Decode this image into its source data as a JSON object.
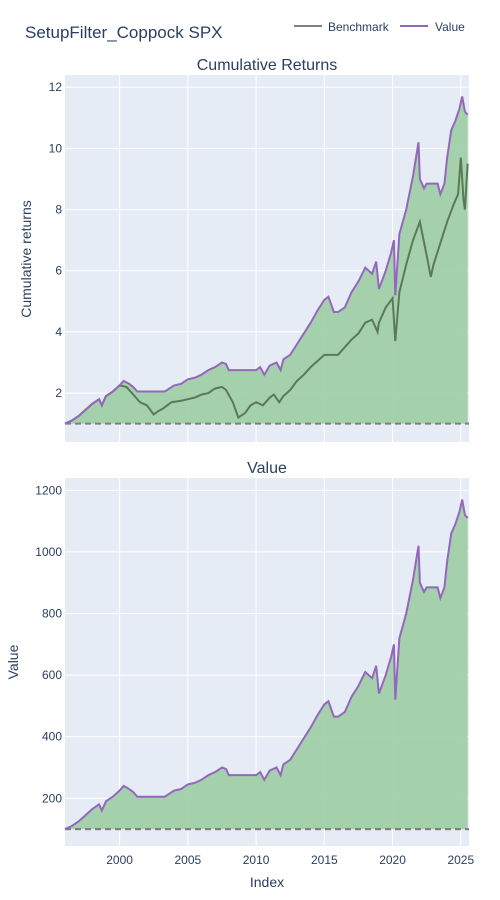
{
  "title": "SetupFilter_Coppock SPX",
  "legend": {
    "items": [
      {
        "name": "Benchmark",
        "color": "#7f7f7f"
      },
      {
        "name": "Value",
        "color": "#9467bd"
      }
    ]
  },
  "colors": {
    "plot_bg": "#e5ecf6",
    "grid": "#ffffff",
    "fill": "#a0d0a8",
    "value": "#9467bd",
    "benchmark": "#5a7a55",
    "baseline": "#7f7f7f",
    "text": "#2a3f5f"
  },
  "chart_data": [
    {
      "type": "line",
      "title": "Cumulative Returns",
      "xlabel": "",
      "ylabel": "Cumulative returns",
      "xlim": [
        1996.0,
        2025.6
      ],
      "ylim": [
        0.4,
        12.4
      ],
      "yticks": [
        2,
        4,
        6,
        8,
        10,
        12
      ],
      "xticks": [
        2000,
        2005,
        2010,
        2015,
        2020,
        2025
      ],
      "xtick_labels_shown": false,
      "baseline": 1,
      "series": [
        {
          "name": "Value",
          "x": [
            1996.0,
            1996.5,
            1997.0,
            1997.5,
            1998.0,
            1998.5,
            1998.7,
            1999.0,
            1999.5,
            2000.0,
            2000.3,
            2000.7,
            2001.0,
            2001.3,
            2002.0,
            2003.0,
            2003.3,
            2004.0,
            2004.5,
            2005.0,
            2005.5,
            2006.0,
            2006.5,
            2007.0,
            2007.5,
            2007.8,
            2008.0,
            2009.0,
            2009.5,
            2010.0,
            2010.3,
            2010.6,
            2011.0,
            2011.5,
            2011.8,
            2012.0,
            2012.5,
            2013.0,
            2013.5,
            2014.0,
            2014.5,
            2015.0,
            2015.3,
            2015.7,
            2016.0,
            2016.5,
            2017.0,
            2017.5,
            2018.0,
            2018.5,
            2018.8,
            2019.0,
            2019.5,
            2019.9,
            2020.1,
            2020.2,
            2020.5,
            2021.0,
            2021.5,
            2021.9,
            2022.0,
            2022.3,
            2022.5,
            2023.0,
            2023.3,
            2023.5,
            2023.8,
            2024.0,
            2024.3,
            2024.6,
            2024.9,
            2025.1,
            2025.3,
            2025.5
          ],
          "y": [
            1.0,
            1.1,
            1.25,
            1.45,
            1.65,
            1.8,
            1.6,
            1.9,
            2.05,
            2.25,
            2.4,
            2.3,
            2.2,
            2.05,
            2.05,
            2.05,
            2.05,
            2.25,
            2.3,
            2.45,
            2.5,
            2.6,
            2.75,
            2.85,
            3.0,
            2.95,
            2.75,
            2.75,
            2.75,
            2.75,
            2.85,
            2.6,
            2.9,
            3.0,
            2.75,
            3.1,
            3.25,
            3.6,
            3.95,
            4.3,
            4.7,
            5.05,
            5.15,
            4.65,
            4.65,
            4.8,
            5.3,
            5.65,
            6.1,
            5.9,
            6.3,
            5.4,
            6.0,
            6.6,
            7.0,
            5.2,
            7.2,
            8.0,
            9.1,
            10.2,
            9.0,
            8.7,
            8.85,
            8.85,
            8.85,
            8.5,
            8.85,
            9.7,
            10.6,
            10.9,
            11.3,
            11.7,
            11.2,
            11.1
          ]
        },
        {
          "name": "Benchmark",
          "x": [
            1996.0,
            1996.5,
            1997.0,
            1997.5,
            1998.0,
            1998.5,
            1998.7,
            1999.0,
            1999.5,
            2000.0,
            2000.5,
            2001.0,
            2001.5,
            2002.0,
            2002.5,
            2002.8,
            2003.2,
            2003.8,
            2004.5,
            2005.0,
            2005.5,
            2006.0,
            2006.5,
            2007.0,
            2007.5,
            2007.8,
            2008.3,
            2008.7,
            2009.2,
            2009.6,
            2010.0,
            2010.5,
            2011.0,
            2011.3,
            2011.7,
            2012.0,
            2012.5,
            2013.0,
            2013.5,
            2014.0,
            2014.5,
            2015.0,
            2015.5,
            2016.0,
            2016.5,
            2017.0,
            2017.5,
            2018.0,
            2018.5,
            2018.9,
            2019.0,
            2019.5,
            2020.0,
            2020.2,
            2020.5,
            2021.0,
            2021.5,
            2022.0,
            2022.5,
            2022.8,
            2023.0,
            2023.5,
            2024.0,
            2024.5,
            2024.8,
            2025.0,
            2025.2,
            2025.3,
            2025.5
          ],
          "y": [
            1.0,
            1.1,
            1.25,
            1.45,
            1.65,
            1.8,
            1.6,
            1.9,
            2.05,
            2.25,
            2.2,
            1.95,
            1.7,
            1.6,
            1.3,
            1.4,
            1.5,
            1.7,
            1.75,
            1.8,
            1.85,
            1.95,
            2.0,
            2.15,
            2.2,
            2.1,
            1.7,
            1.2,
            1.35,
            1.6,
            1.7,
            1.6,
            1.85,
            1.95,
            1.7,
            1.9,
            2.1,
            2.4,
            2.6,
            2.85,
            3.05,
            3.25,
            3.25,
            3.25,
            3.5,
            3.75,
            3.95,
            4.3,
            4.4,
            4.0,
            4.3,
            4.8,
            5.1,
            3.7,
            5.3,
            6.2,
            7.0,
            7.6,
            6.5,
            5.8,
            6.2,
            6.9,
            7.6,
            8.2,
            8.5,
            9.7,
            8.3,
            8.0,
            9.5
          ]
        }
      ]
    },
    {
      "type": "line",
      "title": "Value",
      "xlabel": "Index",
      "ylabel": "Value",
      "xlim": [
        1996.0,
        2025.6
      ],
      "ylim": [
        45,
        1240
      ],
      "yticks": [
        200,
        400,
        600,
        800,
        1000,
        1200
      ],
      "xticks": [
        2000,
        2005,
        2010,
        2015,
        2020,
        2025
      ],
      "xtick_labels": [
        "2000",
        "2005",
        "2010",
        "2015",
        "2020",
        "2025"
      ],
      "baseline": 100,
      "series": [
        {
          "name": "Value",
          "x": [
            1996.0,
            1996.5,
            1997.0,
            1997.5,
            1998.0,
            1998.5,
            1998.7,
            1999.0,
            1999.5,
            2000.0,
            2000.3,
            2000.7,
            2001.0,
            2001.3,
            2002.0,
            2003.0,
            2003.3,
            2004.0,
            2004.5,
            2005.0,
            2005.5,
            2006.0,
            2006.5,
            2007.0,
            2007.5,
            2007.8,
            2008.0,
            2009.0,
            2009.5,
            2010.0,
            2010.3,
            2010.6,
            2011.0,
            2011.5,
            2011.8,
            2012.0,
            2012.5,
            2013.0,
            2013.5,
            2014.0,
            2014.5,
            2015.0,
            2015.3,
            2015.7,
            2016.0,
            2016.5,
            2017.0,
            2017.5,
            2018.0,
            2018.5,
            2018.8,
            2019.0,
            2019.5,
            2019.9,
            2020.1,
            2020.2,
            2020.5,
            2021.0,
            2021.5,
            2021.9,
            2022.0,
            2022.3,
            2022.5,
            2023.0,
            2023.3,
            2023.5,
            2023.8,
            2024.0,
            2024.3,
            2024.6,
            2024.9,
            2025.1,
            2025.3,
            2025.5
          ],
          "y": [
            100,
            110,
            125,
            145,
            165,
            180,
            160,
            190,
            205,
            225,
            240,
            230,
            220,
            205,
            205,
            205,
            205,
            225,
            230,
            245,
            250,
            260,
            275,
            285,
            300,
            295,
            275,
            275,
            275,
            275,
            285,
            260,
            290,
            300,
            275,
            310,
            325,
            360,
            395,
            430,
            470,
            505,
            515,
            465,
            465,
            480,
            530,
            565,
            610,
            590,
            630,
            540,
            600,
            660,
            700,
            520,
            720,
            800,
            910,
            1020,
            900,
            870,
            885,
            885,
            885,
            850,
            885,
            970,
            1060,
            1090,
            1130,
            1170,
            1120,
            1110
          ]
        },
        {
          "name": "Benchmark",
          "x": [
            1996.0,
            2025.6
          ],
          "y": [
            100,
            100
          ]
        }
      ]
    }
  ]
}
